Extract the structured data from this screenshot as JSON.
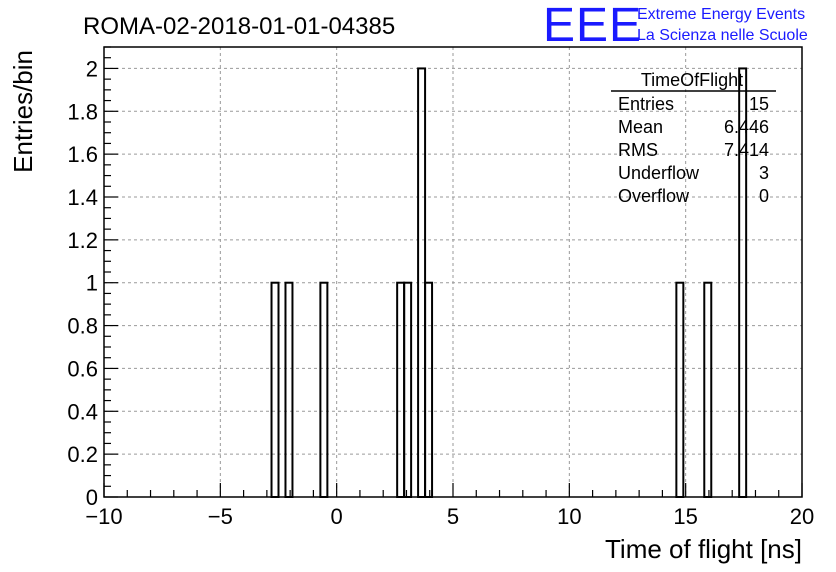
{
  "logo": {
    "mark": "EEE",
    "line1": "Extreme Energy Events",
    "line2": "La Scienza nelle Scuole",
    "color": "#1a1aff"
  },
  "stats_box": {
    "title": "TimeOfFlight",
    "rows": [
      {
        "label": "Entries",
        "value": "15"
      },
      {
        "label": "Mean",
        "value": "6.446"
      },
      {
        "label": "RMS",
        "value": "7.414"
      },
      {
        "label": "Underflow",
        "value": "3"
      },
      {
        "label": "Overflow",
        "value": "0"
      }
    ]
  },
  "chart_data": {
    "type": "bar",
    "title": "ROMA-02-2018-01-01-04385",
    "xlabel": "Time of flight [ns]",
    "ylabel": "Entries/bin",
    "xlim": [
      -10,
      20
    ],
    "ylim": [
      0,
      2.1
    ],
    "bin_width": 0.3,
    "grid": true,
    "x_ticks": [
      "−10",
      "−5",
      "0",
      "5",
      "10",
      "15",
      "20"
    ],
    "x_tick_values": [
      -10,
      -5,
      0,
      5,
      10,
      15,
      20
    ],
    "y_ticks": [
      "0",
      "0.2",
      "0.4",
      "0.6",
      "0.8",
      "1",
      "1.2",
      "1.4",
      "1.6",
      "1.8",
      "2"
    ],
    "y_tick_values": [
      0,
      0.2,
      0.4,
      0.6,
      0.8,
      1,
      1.2,
      1.4,
      1.6,
      1.8,
      2
    ],
    "bins": [
      {
        "x_low": -2.8,
        "x_high": -2.5,
        "count": 1
      },
      {
        "x_low": -2.2,
        "x_high": -1.9,
        "count": 1
      },
      {
        "x_low": -0.7,
        "x_high": -0.4,
        "count": 1
      },
      {
        "x_low": 2.6,
        "x_high": 2.9,
        "count": 1
      },
      {
        "x_low": 2.9,
        "x_high": 3.2,
        "count": 1
      },
      {
        "x_low": 3.5,
        "x_high": 3.8,
        "count": 2
      },
      {
        "x_low": 3.8,
        "x_high": 4.1,
        "count": 1
      },
      {
        "x_low": 14.6,
        "x_high": 14.9,
        "count": 1
      },
      {
        "x_low": 15.8,
        "x_high": 16.1,
        "count": 1
      },
      {
        "x_low": 17.3,
        "x_high": 17.6,
        "count": 2
      }
    ]
  }
}
